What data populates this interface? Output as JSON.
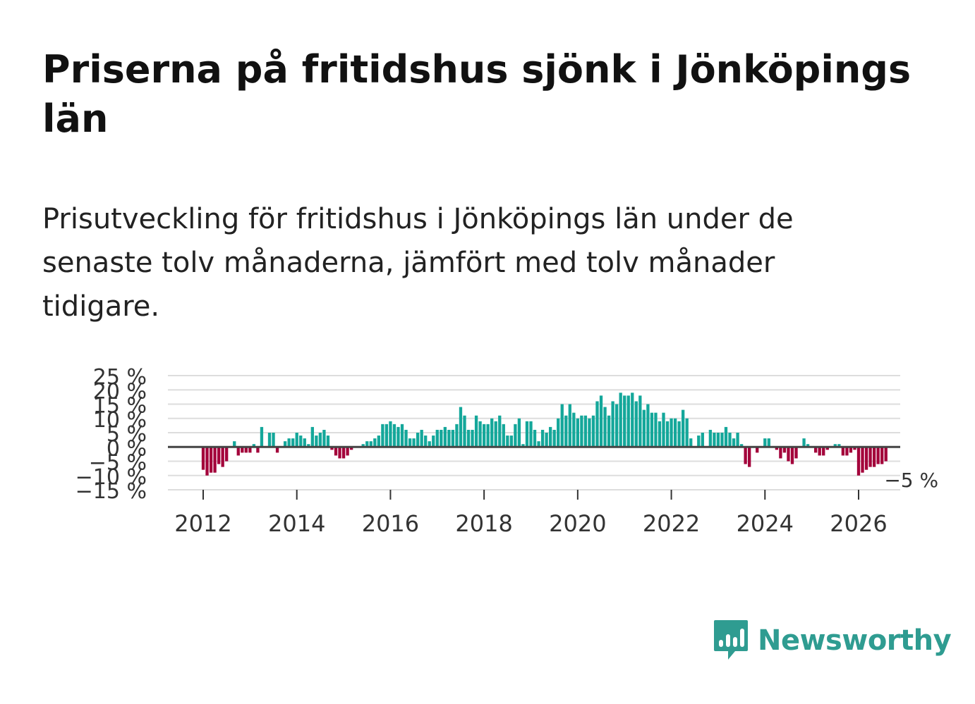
{
  "title": "Priserna på fritidshus sjönk i Jönköpings län",
  "subtitle": "Prisutveckling för fritidshus i Jönköpings län under de senaste tolv månaderna, jämfört med tolv månader tidigare.",
  "brand": {
    "name": "Newsworthy",
    "icon": "newsworthy-logo-icon"
  },
  "colors": {
    "positive": "#14a79a",
    "negative": "#a3003a",
    "zero_line": "#444444",
    "grid": "#dddddd",
    "brand": "#2f9c91"
  },
  "chart_data": {
    "type": "bar",
    "title": "",
    "xlabel": "",
    "ylabel": "",
    "ylim": [
      -15,
      25
    ],
    "y_ticks": [
      25,
      20,
      15,
      10,
      5,
      0,
      -5,
      -10,
      -15
    ],
    "y_tick_labels": [
      "25 %",
      "20 %",
      "15 %",
      "10 %",
      "5 %",
      "0 %",
      "−5 %",
      "−10 %",
      "−15 %"
    ],
    "x_ticks": [
      2012,
      2014,
      2016,
      2018,
      2020,
      2022,
      2024,
      2026
    ],
    "x_tick_labels": [
      "2012",
      "2014",
      "2016",
      "2018",
      "2020",
      "2022",
      "2024",
      "2026"
    ],
    "x_start": 2012,
    "last_value_label": "−5 %",
    "series": [
      {
        "name": "Prisutveckling",
        "values": [
          -8,
          -10,
          -9,
          -9,
          -6,
          -7,
          -5,
          0,
          2,
          -3,
          -2,
          -2,
          -2,
          1,
          -2,
          7,
          0,
          5,
          5,
          -2,
          0,
          2,
          3,
          3,
          5,
          4,
          3,
          1,
          7,
          4,
          5,
          6,
          4,
          -1,
          -3,
          -4,
          -4,
          -3,
          -1,
          0,
          0,
          1,
          2,
          2,
          3,
          4,
          8,
          8,
          9,
          8,
          7,
          8,
          6,
          3,
          3,
          5,
          6,
          4,
          2,
          4,
          6,
          6,
          7,
          6,
          6,
          8,
          14,
          11,
          6,
          6,
          11,
          9,
          8,
          8,
          10,
          9,
          11,
          8,
          4,
          4,
          8,
          10,
          1,
          9,
          9,
          6,
          2,
          6,
          5,
          7,
          6,
          10,
          15,
          11,
          15,
          12,
          10,
          11,
          11,
          10,
          11,
          16,
          18,
          14,
          11,
          16,
          15,
          19,
          18,
          18,
          19,
          16,
          18,
          13,
          15,
          12,
          12,
          9,
          12,
          9,
          10,
          10,
          9,
          13,
          10,
          3,
          0,
          4,
          5,
          0,
          6,
          5,
          5,
          5,
          7,
          5,
          3,
          5,
          1,
          -6,
          -7,
          0,
          -2,
          0,
          3,
          3,
          0,
          -1,
          -4,
          -2,
          -5,
          -6,
          -4,
          0,
          3,
          1,
          0,
          -2,
          -3,
          -3,
          -1,
          0,
          1,
          1,
          -3,
          -3,
          -2,
          -1,
          -10,
          -9,
          -8,
          -7,
          -7,
          -6,
          -6,
          -5
        ]
      }
    ]
  }
}
